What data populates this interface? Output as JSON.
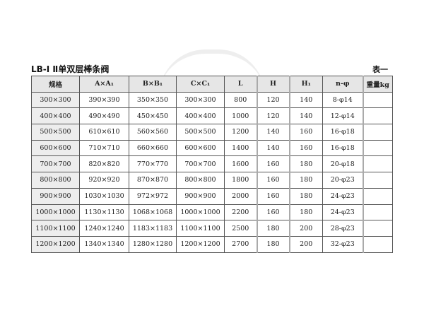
{
  "title": "LB-Ⅰ Ⅱ单双层棒条阀",
  "table_no": "表一",
  "headers": [
    "规格",
    "A×A₁",
    "B×B₁",
    "C×C₁",
    "L",
    "H",
    "H₁",
    "n-φ",
    "重量kg"
  ],
  "rows": [
    [
      "300×300",
      "390×390",
      "350×350",
      "300×300",
      "800",
      "120",
      "140",
      "8-φ14",
      ""
    ],
    [
      "400×400",
      "490×490",
      "450×450",
      "400×400",
      "1000",
      "120",
      "140",
      "12-φ14",
      ""
    ],
    [
      "500×500",
      "610×610",
      "560×560",
      "500×500",
      "1200",
      "140",
      "160",
      "16-φ18",
      ""
    ],
    [
      "600×600",
      "710×710",
      "660×660",
      "600×600",
      "1400",
      "140",
      "160",
      "16-φ18",
      ""
    ],
    [
      "700×700",
      "820×820",
      "770×770",
      "700×700",
      "1600",
      "160",
      "180",
      "20-φ18",
      ""
    ],
    [
      "800×800",
      "920×920",
      "870×870",
      "800×800",
      "1800",
      "160",
      "180",
      "20-φ23",
      ""
    ],
    [
      "900×900",
      "1030×1030",
      "972×972",
      "900×900",
      "2000",
      "160",
      "180",
      "24-φ23",
      ""
    ],
    [
      "1000×1000",
      "1130×1130",
      "1068×1068",
      "1000×1000",
      "2200",
      "160",
      "180",
      "24-φ23",
      ""
    ],
    [
      "1100×1100",
      "1240×1240",
      "1183×1183",
      "1100×1100",
      "2500",
      "180",
      "200",
      "28-φ23",
      ""
    ],
    [
      "1200×1200",
      "1340×1340",
      "1280×1280",
      "1200×1200",
      "2700",
      "180",
      "200",
      "32-φ23",
      ""
    ]
  ]
}
